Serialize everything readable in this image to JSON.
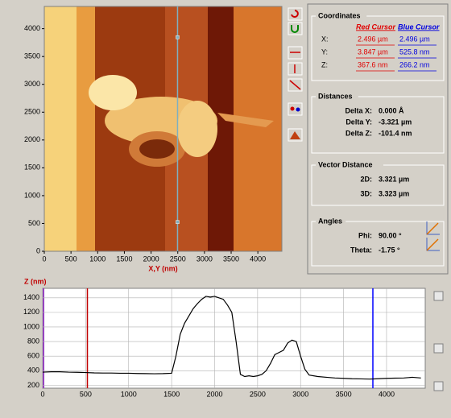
{
  "chart_data": [
    {
      "type": "image",
      "xlabel": "X,Y (nm)",
      "xlim": [
        0,
        4450
      ],
      "ylim": [
        0,
        4400
      ],
      "xticks": [
        0,
        500,
        1000,
        1500,
        2000,
        2500,
        3000,
        3500,
        4000
      ],
      "yticks": [
        0,
        500,
        1000,
        1500,
        2000,
        2500,
        3000,
        3500,
        4000
      ],
      "cursors": [
        {
          "x": 2496,
          "y": 3847
        },
        {
          "x": 2496,
          "y": 525.8
        }
      ],
      "color": "#7fb0c0"
    },
    {
      "type": "line",
      "ylabel": "Z (nm)",
      "xlim": [
        0,
        4450
      ],
      "ylim": [
        160,
        1530
      ],
      "xticks": [
        0,
        500,
        1000,
        1500,
        2000,
        2500,
        3000,
        3500,
        4000
      ],
      "yticks": [
        200,
        400,
        600,
        800,
        1000,
        1200,
        1400
      ],
      "grid": true,
      "color": "#000000",
      "x": [
        0,
        100,
        200,
        300,
        400,
        500,
        600,
        700,
        800,
        900,
        1000,
        1100,
        1200,
        1300,
        1400,
        1500,
        1550,
        1600,
        1650,
        1700,
        1750,
        1800,
        1850,
        1900,
        1950,
        2000,
        2050,
        2100,
        2150,
        2200,
        2250,
        2300,
        2350,
        2400,
        2450,
        2500,
        2550,
        2600,
        2650,
        2700,
        2750,
        2800,
        2850,
        2900,
        2950,
        3000,
        3050,
        3100,
        3200,
        3300,
        3400,
        3500,
        3600,
        3700,
        3800,
        3850,
        3900,
        4000,
        4100,
        4200,
        4300,
        4400
      ],
      "values": [
        380,
        385,
        385,
        380,
        378,
        375,
        370,
        368,
        368,
        365,
        365,
        362,
        360,
        358,
        360,
        365,
        600,
        900,
        1050,
        1150,
        1250,
        1320,
        1380,
        1420,
        1410,
        1420,
        1400,
        1380,
        1300,
        1200,
        800,
        350,
        320,
        330,
        320,
        330,
        350,
        400,
        500,
        620,
        650,
        680,
        780,
        820,
        800,
        600,
        420,
        340,
        320,
        310,
        300,
        295,
        290,
        288,
        285,
        287,
        290,
        295,
        298,
        300,
        310,
        300
      ],
      "cursors": [
        {
          "x": 520,
          "color": "#c00000"
        },
        {
          "x": 3841,
          "color": "#0000ff"
        }
      ]
    }
  ],
  "panel": {
    "coordinates": {
      "title": "Coordinates",
      "headers": [
        "Red Cursor",
        "Blue Cursor"
      ],
      "rows": [
        {
          "label": "X:",
          "red": "2.496 µm",
          "blue": "2.496 µm"
        },
        {
          "label": "Y:",
          "red": "3.847 µm",
          "blue": "525.8  nm"
        },
        {
          "label": "Z:",
          "red": "367.6 nm",
          "blue": "266.2 nm"
        }
      ]
    },
    "distances": {
      "title": "Distances",
      "rows": [
        {
          "label": "Delta X:",
          "value": "0.000 Å"
        },
        {
          "label": "Delta Y:",
          "value": "-3.321 µm"
        },
        {
          "label": "Delta Z:",
          "value": "-101.4 nm"
        }
      ]
    },
    "vector": {
      "title": "Vector Distance",
      "rows": [
        {
          "label": "2D:",
          "value": "3.321 µm"
        },
        {
          "label": "3D:",
          "value": "3.323 µm"
        }
      ]
    },
    "angles": {
      "title": "Angles",
      "rows": [
        {
          "label": "Phi:",
          "value": "90.00 °"
        },
        {
          "label": "Theta:",
          "value": "-1.75 °"
        }
      ]
    }
  }
}
